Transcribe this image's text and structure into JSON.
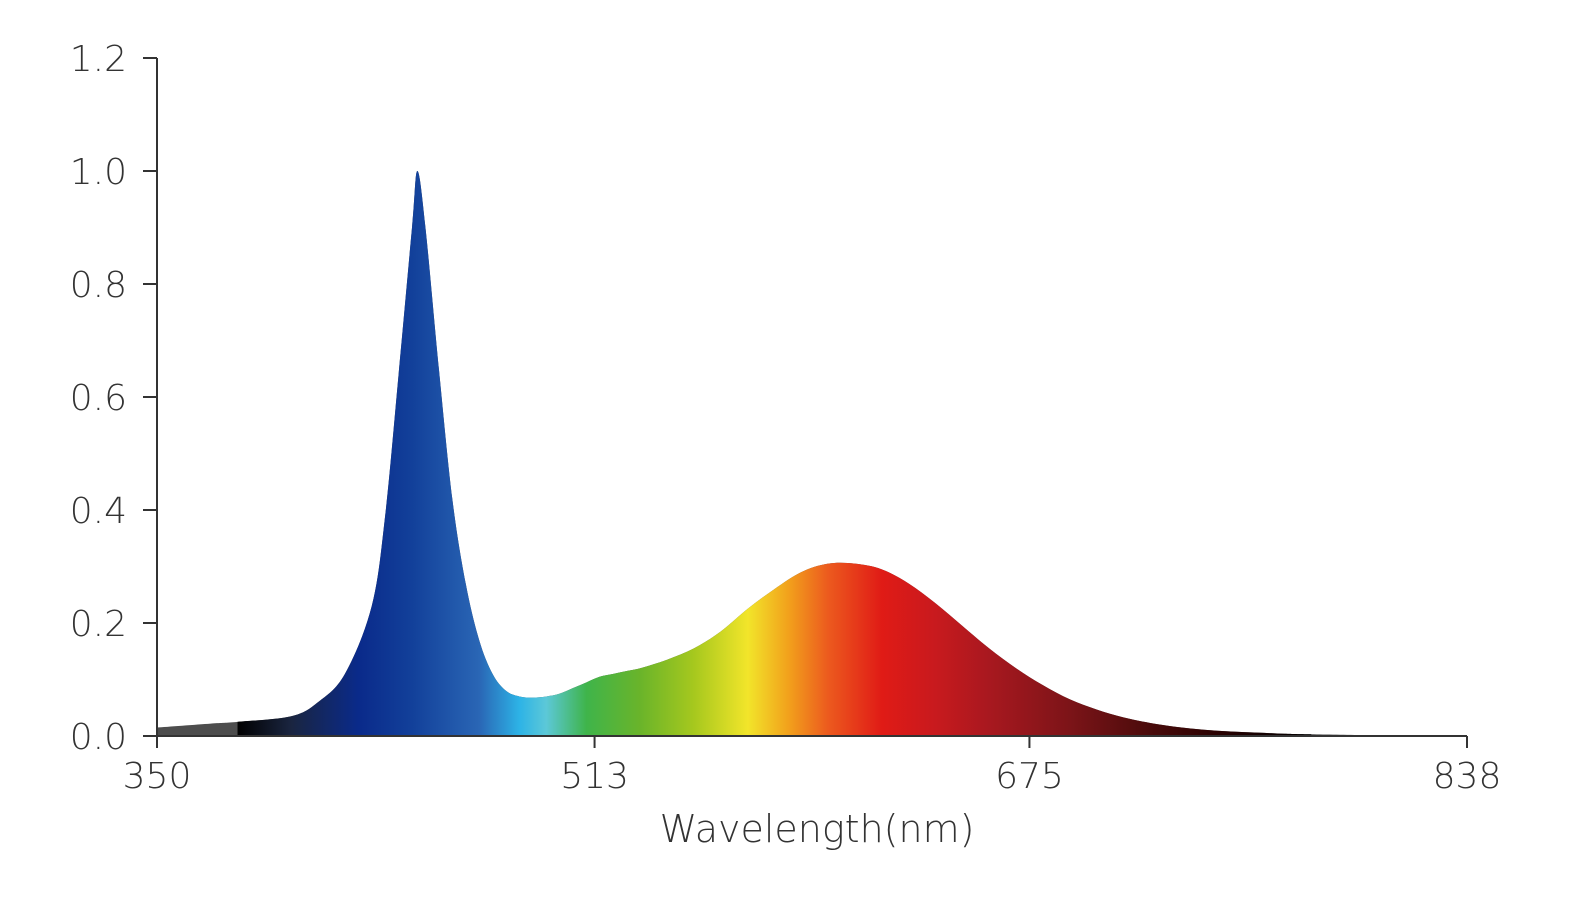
{
  "chart_data": {
    "type": "area",
    "title": "",
    "xlabel": "Wavelength(nm)",
    "ylabel": "",
    "xlim": [
      350,
      838
    ],
    "ylim": [
      0,
      1.2
    ],
    "x_ticks": [
      350,
      513,
      675,
      838
    ],
    "x_tick_labels": [
      "350",
      "513",
      "675",
      "838"
    ],
    "y_ticks": [
      0,
      0.2,
      0.4,
      0.6,
      0.8,
      1.0,
      1.2
    ],
    "y_tick_labels": [
      "0.0",
      "0.2",
      "0.4",
      "0.6",
      "0.8",
      "1.0",
      "1.2"
    ],
    "grid": false,
    "visible_spectrum_nm": [
      380,
      780
    ],
    "out_of_range_color": "#4d4d4d",
    "axis_color": "#333333",
    "series": [
      {
        "x": [
          350,
          370,
          380,
          400,
          410,
          420,
          430,
          435,
          440,
          445,
          447,
          450,
          455,
          460,
          465,
          470,
          475,
          480,
          485,
          490,
          495,
          500,
          505,
          510,
          515,
          520,
          525,
          530,
          540,
          550,
          560,
          570,
          580,
          590,
          600,
          610,
          620,
          630,
          640,
          650,
          660,
          670,
          680,
          690,
          700,
          710,
          720,
          730,
          740,
          750,
          760,
          770,
          780,
          800,
          820,
          838
        ],
        "y": [
          0.015,
          0.022,
          0.025,
          0.035,
          0.06,
          0.11,
          0.23,
          0.39,
          0.64,
          0.9,
          1.0,
          0.9,
          0.65,
          0.42,
          0.27,
          0.17,
          0.11,
          0.08,
          0.07,
          0.068,
          0.07,
          0.075,
          0.085,
          0.095,
          0.105,
          0.11,
          0.115,
          0.12,
          0.135,
          0.155,
          0.185,
          0.225,
          0.26,
          0.29,
          0.305,
          0.305,
          0.295,
          0.27,
          0.235,
          0.195,
          0.155,
          0.12,
          0.09,
          0.065,
          0.047,
          0.033,
          0.023,
          0.016,
          0.011,
          0.008,
          0.006,
          0.004,
          0.003,
          0.0015,
          0.0005,
          0.0
        ]
      }
    ]
  }
}
